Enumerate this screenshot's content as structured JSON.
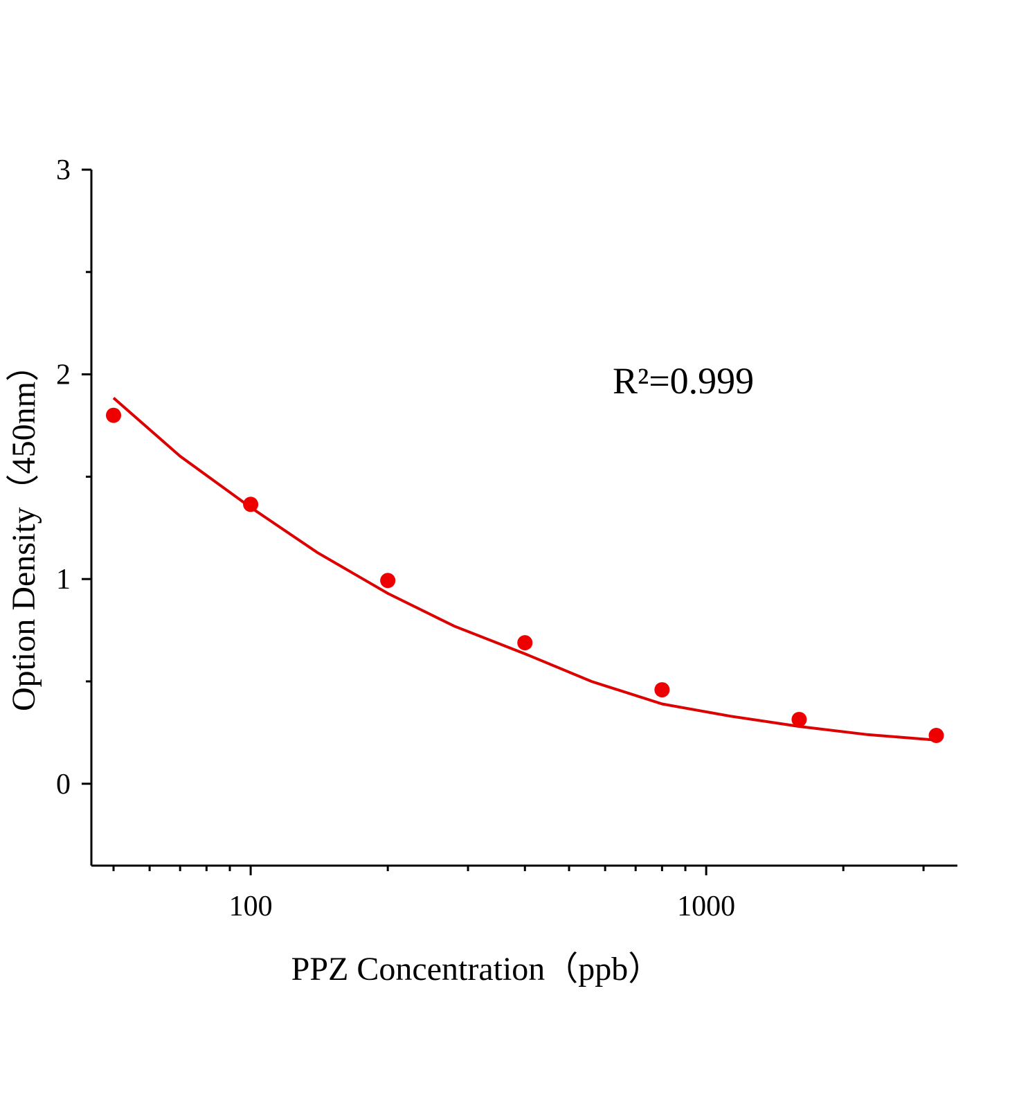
{
  "chart_data": {
    "type": "scatter",
    "x_label": "PPZ  Concentration（ppb）",
    "y_label": "Option Density（450nm）",
    "annotation": "R²=0.999",
    "xscale": "log",
    "xlim": [
      44.7,
      3560
    ],
    "ylim": [
      -0.4,
      3
    ],
    "xticks": [
      100,
      1000
    ],
    "xminorticks": [
      50,
      60,
      70,
      80,
      90,
      200,
      300,
      400,
      500,
      600,
      700,
      800,
      900,
      2000,
      3000
    ],
    "yticks": [
      0,
      1,
      2,
      3
    ],
    "yminorticks": [
      0.5,
      1.5,
      2.5
    ],
    "points": {
      "color": "#ee0000",
      "x": [
        50,
        100,
        200,
        400,
        800,
        1600,
        3200
      ],
      "values": [
        1.8,
        1.365,
        0.993,
        0.689,
        0.459,
        0.314,
        0.236
      ]
    },
    "fit": {
      "type": "line",
      "color": "#dd0000",
      "x": [
        50,
        70,
        100,
        140,
        200,
        280,
        400,
        560,
        800,
        1130,
        1600,
        2260,
        3200
      ],
      "values": [
        1.885,
        1.6,
        1.35,
        1.13,
        0.93,
        0.77,
        0.635,
        0.5,
        0.39,
        0.33,
        0.28,
        0.24,
        0.213
      ]
    }
  }
}
